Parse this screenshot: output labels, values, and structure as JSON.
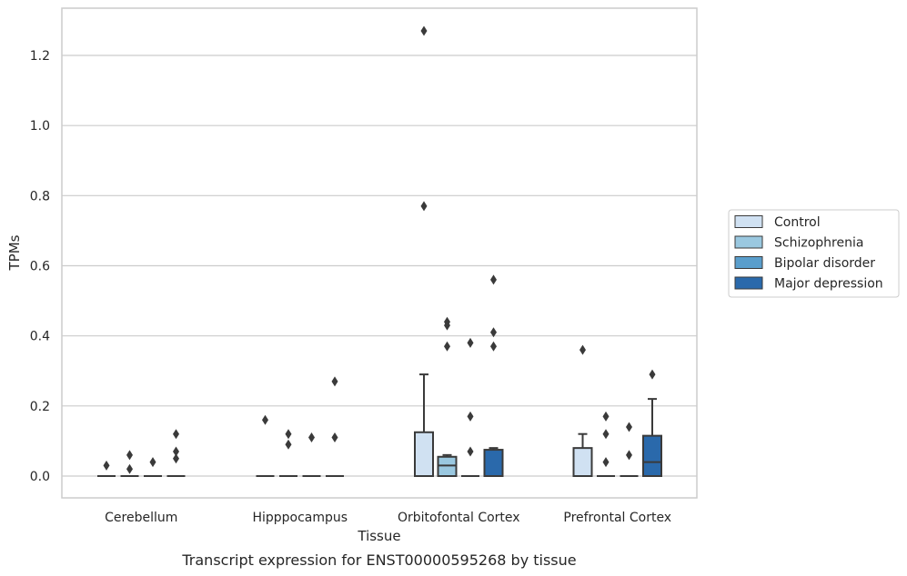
{
  "caption": "Transcript expression for ENST00000595268 by tissue",
  "chart_data": {
    "type": "box",
    "title": "",
    "xlabel": "Tissue",
    "ylabel": "TPMs",
    "ylim": [
      -0.06,
      1.34
    ],
    "yticks": [
      "0.0",
      "0.2",
      "0.4",
      "0.6",
      "0.8",
      "1.0",
      "1.2"
    ],
    "grid": "horizontal",
    "legend_position": "right",
    "categories": [
      "Cerebellum",
      "Hipppocampus",
      "Orbitofontal Cortex",
      "Prefrontal Cortex"
    ],
    "series": [
      {
        "name": "Control",
        "color": "#d0e1f2",
        "boxes": [
          {
            "q1": 0,
            "median": 0,
            "q3": 0,
            "whisker_low": 0,
            "whisker_high": 0,
            "outliers": [
              0.03
            ]
          },
          {
            "q1": 0,
            "median": 0,
            "q3": 0,
            "whisker_low": 0,
            "whisker_high": 0,
            "outliers": [
              0.16
            ]
          },
          {
            "q1": 0,
            "median": 0,
            "q3": 0.125,
            "whisker_low": 0,
            "whisker_high": 0.29,
            "outliers": [
              1.27,
              0.77
            ]
          },
          {
            "q1": 0,
            "median": 0,
            "q3": 0.08,
            "whisker_low": 0,
            "whisker_high": 0.12,
            "outliers": [
              0.36
            ]
          }
        ]
      },
      {
        "name": "Schizophrenia",
        "color": "#9ac8e0",
        "boxes": [
          {
            "q1": 0,
            "median": 0,
            "q3": 0,
            "whisker_low": 0,
            "whisker_high": 0,
            "outliers": [
              0.06,
              0.02
            ]
          },
          {
            "q1": 0,
            "median": 0,
            "q3": 0,
            "whisker_low": 0,
            "whisker_high": 0,
            "outliers": [
              0.12,
              0.09
            ]
          },
          {
            "q1": 0,
            "median": 0.03,
            "q3": 0.055,
            "whisker_low": 0,
            "whisker_high": 0.06,
            "outliers": [
              0.44,
              0.43,
              0.37
            ]
          },
          {
            "q1": 0,
            "median": 0,
            "q3": 0,
            "whisker_low": 0,
            "whisker_high": 0,
            "outliers": [
              0.17,
              0.12,
              0.04
            ]
          }
        ]
      },
      {
        "name": "Bipolar disorder",
        "color": "#5a9ecc",
        "boxes": [
          {
            "q1": 0,
            "median": 0,
            "q3": 0,
            "whisker_low": 0,
            "whisker_high": 0,
            "outliers": [
              0.04
            ]
          },
          {
            "q1": 0,
            "median": 0,
            "q3": 0,
            "whisker_low": 0,
            "whisker_high": 0,
            "outliers": [
              0.11
            ]
          },
          {
            "q1": 0,
            "median": 0,
            "q3": 0,
            "whisker_low": 0,
            "whisker_high": 0,
            "outliers": [
              0.38,
              0.17,
              0.07
            ]
          },
          {
            "q1": 0,
            "median": 0,
            "q3": 0,
            "whisker_low": 0,
            "whisker_high": 0,
            "outliers": [
              0.14,
              0.06
            ]
          }
        ]
      },
      {
        "name": "Major depression",
        "color": "#2a69ab",
        "boxes": [
          {
            "q1": 0,
            "median": 0,
            "q3": 0,
            "whisker_low": 0,
            "whisker_high": 0,
            "outliers": [
              0.12,
              0.07,
              0.05
            ]
          },
          {
            "q1": 0,
            "median": 0,
            "q3": 0,
            "whisker_low": 0,
            "whisker_high": 0,
            "outliers": [
              0.27,
              0.11
            ]
          },
          {
            "q1": 0,
            "median": 0,
            "q3": 0.075,
            "whisker_low": 0,
            "whisker_high": 0.08,
            "outliers": [
              0.56,
              0.41,
              0.37
            ]
          },
          {
            "q1": 0,
            "median": 0.04,
            "q3": 0.115,
            "whisker_low": 0,
            "whisker_high": 0.22,
            "outliers": [
              0.29
            ]
          }
        ]
      }
    ]
  }
}
